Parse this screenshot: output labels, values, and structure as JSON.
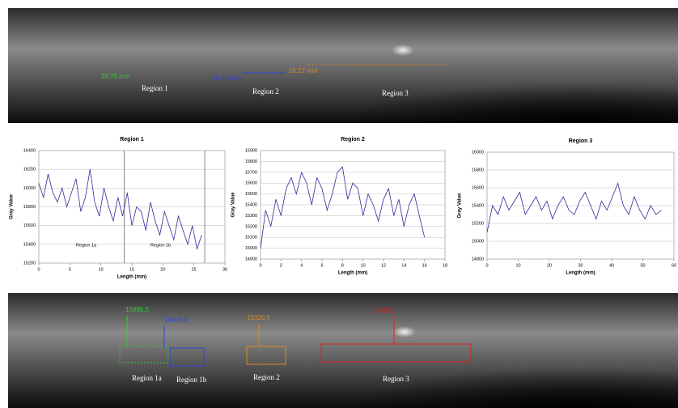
{
  "top_image": {
    "measurements": [
      "26.75 mm",
      "16.00 mm",
      "55.27 mm"
    ],
    "regions": [
      "Region 1",
      "Region 2",
      "Region 3"
    ]
  },
  "chart_data": [
    {
      "type": "line",
      "title": "Region 1",
      "x_label": "Length (mm)",
      "y_label": "Gray Value",
      "color": "#2b2b9a",
      "xlim": [
        0,
        30
      ],
      "xticks": [
        0,
        5,
        10,
        15,
        20,
        25,
        30
      ],
      "ylim": [
        15200,
        16400
      ],
      "yticks": [
        15200,
        15400,
        15600,
        15800,
        16000,
        16200,
        16400
      ],
      "grid": true,
      "x": [
        0,
        0.75,
        1.5,
        2.25,
        3,
        3.75,
        4.5,
        5.25,
        6,
        6.75,
        7.5,
        8.25,
        9,
        9.75,
        10.5,
        11.25,
        12,
        12.75,
        13.5,
        14.25,
        15,
        15.75,
        16.5,
        17.25,
        18,
        18.75,
        19.5,
        20.25,
        21,
        21.75,
        22.5,
        23.25,
        24,
        24.75,
        25.5,
        26.25
      ],
      "values": [
        16050,
        15900,
        16150,
        15950,
        15850,
        16000,
        15800,
        15950,
        16100,
        15750,
        15900,
        16200,
        15850,
        15700,
        16000,
        15800,
        15650,
        15900,
        15700,
        15950,
        15600,
        15800,
        15750,
        15550,
        15850,
        15650,
        15500,
        15750,
        15600,
        15450,
        15700,
        15550,
        15400,
        15600,
        15350,
        15500
      ],
      "vlines": [
        13.75,
        26.75
      ],
      "annotations": [
        "Region 1a",
        "Region 1b"
      ]
    },
    {
      "type": "line",
      "title": "Region 2",
      "x_label": "Length (mm)",
      "y_label": "Gray Value",
      "color": "#2b2b9a",
      "xlim": [
        0,
        18
      ],
      "xticks": [
        0,
        2,
        4,
        6,
        8,
        10,
        12,
        14,
        16,
        18
      ],
      "ylim": [
        14900,
        15900
      ],
      "yticks": [
        14900,
        15000,
        15100,
        15200,
        15300,
        15400,
        15500,
        15600,
        15700,
        15800,
        15900
      ],
      "grid": true,
      "x": [
        0,
        0.5,
        1,
        1.5,
        2,
        2.5,
        3,
        3.5,
        4,
        4.5,
        5,
        5.5,
        6,
        6.5,
        7,
        7.5,
        8,
        8.5,
        9,
        9.5,
        10,
        10.5,
        11,
        11.5,
        12,
        12.5,
        13,
        13.5,
        14,
        14.5,
        15,
        15.5,
        16
      ],
      "values": [
        15000,
        15350,
        15200,
        15450,
        15300,
        15550,
        15650,
        15500,
        15700,
        15600,
        15400,
        15650,
        15550,
        15350,
        15500,
        15700,
        15750,
        15450,
        15600,
        15550,
        15300,
        15500,
        15400,
        15250,
        15450,
        15550,
        15300,
        15450,
        15200,
        15400,
        15500,
        15300,
        15100
      ]
    },
    {
      "type": "line",
      "title": "Region 3",
      "x_label": "Length (mm)",
      "y_label": "Gray Value",
      "color": "#2b2b9a",
      "xlim": [
        0,
        60
      ],
      "xticks": [
        0,
        10,
        20,
        30,
        40,
        50,
        60
      ],
      "ylim": [
        14800,
        16000
      ],
      "yticks": [
        14800,
        15000,
        15200,
        15400,
        15600,
        15800,
        16000
      ],
      "grid": true,
      "x": [
        0,
        1.75,
        3.5,
        5.25,
        7,
        8.75,
        10.5,
        12.25,
        14,
        15.75,
        17.5,
        19.25,
        21,
        22.75,
        24.5,
        26.25,
        28,
        29.75,
        31.5,
        33.25,
        35,
        36.75,
        38.5,
        40.25,
        42,
        43.75,
        45.5,
        47.25,
        49,
        50.75,
        52.5,
        54.25,
        56
      ],
      "values": [
        15100,
        15400,
        15300,
        15500,
        15350,
        15450,
        15550,
        15300,
        15400,
        15500,
        15350,
        15450,
        15250,
        15400,
        15500,
        15350,
        15300,
        15450,
        15550,
        15400,
        15250,
        15450,
        15350,
        15500,
        15650,
        15400,
        15300,
        15500,
        15350,
        15250,
        15400,
        15300,
        15350
      ]
    }
  ],
  "bottom_image": {
    "means": [
      "15895.5",
      "15658.9",
      "15320.5",
      "15432.2"
    ],
    "regions": [
      "Region 1a",
      "Region 1b",
      "Region 2",
      "Region 3"
    ]
  }
}
